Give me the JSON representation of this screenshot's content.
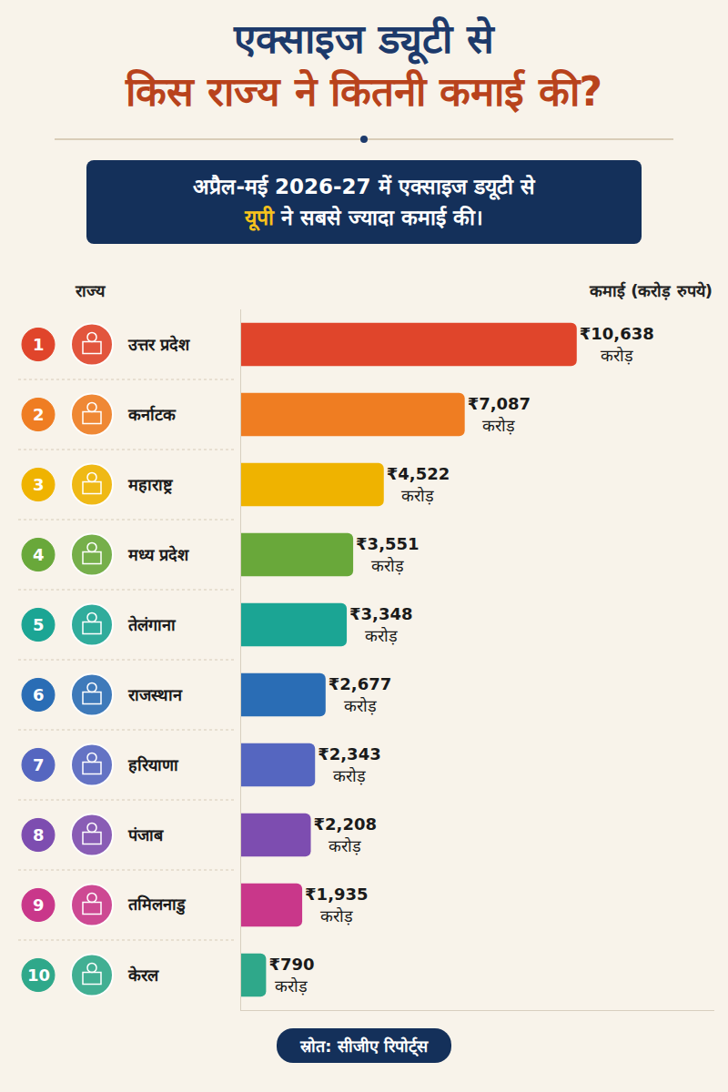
{
  "chart_data": {
    "type": "bar",
    "orientation": "horizontal",
    "title": "एक्साइज ड्यूटी से\nकिस राज्य ने कितनी कमाई की?",
    "subtitle": "अप्रैल-मई 2026-27 में एक्साइज डयूटी से\nयूपी ने सबसे ज्यादा कमाई की।",
    "y_label": "राज्य",
    "x_label": "कमाई (करोड़ रुपये)",
    "ranks": [
      1,
      2,
      3,
      4,
      5,
      6,
      7,
      8,
      9,
      10
    ],
    "categories": [
      "उत्तर प्रदेश",
      "कर्नाटक",
      "महाराष्ट्र",
      "मध्य प्रदेश",
      "तेलंगाना",
      "राजस्थान",
      "हरियाणा",
      "पंजाब",
      "तमिलनाडु",
      "केरल"
    ],
    "values": [
      10638,
      7087,
      4522,
      3551,
      3348,
      2677,
      2343,
      2208,
      1935,
      790
    ],
    "value_labels": [
      "₹10,638 करोड़",
      "₹7,087 करोड़",
      "₹4,522 करोड़",
      "₹3,551 करोड़",
      "₹3,348 करोड़",
      "₹2,677 करोड़",
      "₹2,343 करोड़",
      "₹2,208 करोड़",
      "₹1,935 करोड़",
      "₹790 करोड़"
    ],
    "colors": [
      "#e0452b",
      "#ef7d22",
      "#efb300",
      "#69a83a",
      "#1ba594",
      "#2a6db5",
      "#5566c0",
      "#7d4db0",
      "#c9378a",
      "#2fa88a"
    ],
    "xlim": [
      0,
      15000
    ],
    "xticks": [],
    "grid": false,
    "data_labels": true,
    "tick_labels": false,
    "source": "स्रोत: सीजीए रिपोर्ट्स"
  }
}
